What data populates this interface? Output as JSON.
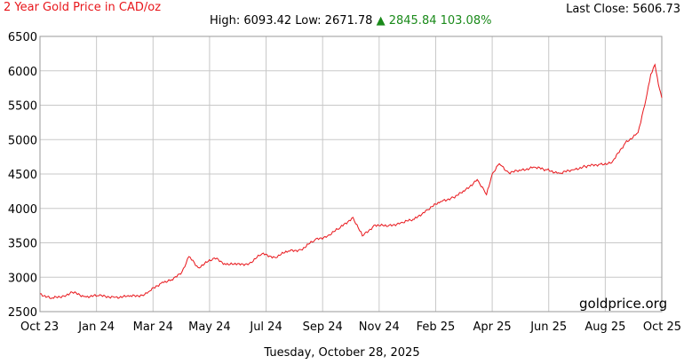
{
  "header": {
    "title": "2 Year Gold Price in CAD/oz",
    "title_color": "#e8161b",
    "last_close_label": "Last Close: 5606.73",
    "high_low": "High: 6093.42 Low: 2671.78",
    "change": "▲ 2845.84 103.08%",
    "change_color": "#1a8a1a"
  },
  "footer": {
    "date": "Tuesday, October 28, 2025",
    "watermark": "goldprice.org"
  },
  "chart_data": {
    "type": "line",
    "line_color": "#e8161b",
    "grid": true,
    "ylim": [
      2500,
      6500
    ],
    "yticks": [
      2500,
      3000,
      3500,
      4000,
      4500,
      5000,
      5500,
      6000,
      6500
    ],
    "xtick_labels": [
      "Oct 23",
      "Jan 24",
      "Mar 24",
      "May 24",
      "Jul 24",
      "Sep 24",
      "Nov 24",
      "Feb 25",
      "Apr 25",
      "Jun 25",
      "Aug 25",
      "Oct 25"
    ],
    "series": [
      {
        "x": [
          "2023-10-28",
          "2023-11-10",
          "2023-11-25",
          "2023-12-05",
          "2023-12-20",
          "2024-01-05",
          "2024-01-25",
          "2024-02-10",
          "2024-02-25",
          "2024-03-05",
          "2024-03-20",
          "2024-04-01",
          "2024-04-12",
          "2024-04-20",
          "2024-05-01",
          "2024-05-20",
          "2024-06-01",
          "2024-06-15",
          "2024-06-30",
          "2024-07-15",
          "2024-07-30",
          "2024-08-15",
          "2024-08-30",
          "2024-09-15",
          "2024-09-30",
          "2024-10-15",
          "2024-10-30",
          "2024-11-10",
          "2024-11-25",
          "2024-12-10",
          "2024-12-25",
          "2025-01-10",
          "2025-01-25",
          "2025-02-10",
          "2025-02-25",
          "2025-03-10",
          "2025-03-25",
          "2025-04-05",
          "2025-04-12",
          "2025-04-20",
          "2025-05-01",
          "2025-05-15",
          "2025-05-30",
          "2025-06-15",
          "2025-06-30",
          "2025-07-15",
          "2025-07-30",
          "2025-08-15",
          "2025-08-30",
          "2025-09-15",
          "2025-09-30",
          "2025-10-08",
          "2025-10-15",
          "2025-10-20",
          "2025-10-24",
          "2025-10-28"
        ],
        "values": [
          2760,
          2690,
          2730,
          2780,
          2720,
          2730,
          2710,
          2720,
          2740,
          2800,
          2930,
          2960,
          3080,
          3300,
          3140,
          3280,
          3200,
          3180,
          3200,
          3340,
          3290,
          3380,
          3400,
          3540,
          3600,
          3720,
          3870,
          3600,
          3760,
          3740,
          3790,
          3840,
          3980,
          4100,
          4160,
          4250,
          4420,
          4200,
          4510,
          4650,
          4520,
          4550,
          4600,
          4560,
          4510,
          4560,
          4610,
          4640,
          4660,
          4950,
          5100,
          5500,
          5950,
          6090,
          5800,
          5607
        ]
      }
    ]
  }
}
